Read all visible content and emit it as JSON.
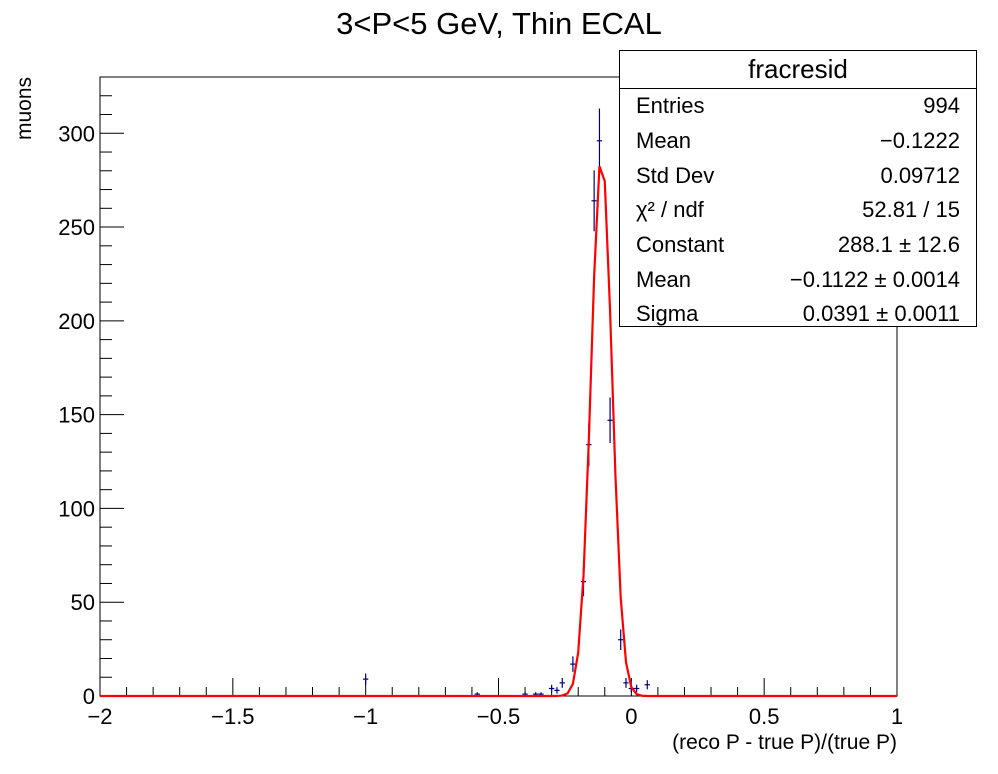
{
  "title": "3<P<5 GeV, Thin ECAL",
  "stats_box": {
    "name": "fracresid",
    "rows": [
      {
        "label": "Entries",
        "value": "994"
      },
      {
        "label": "Mean",
        "value": "−0.1222"
      },
      {
        "label": "Std Dev",
        "value": "0.09712"
      },
      {
        "label": "χ² / ndf",
        "value": "52.81 / 15"
      },
      {
        "label": "Constant",
        "value": "288.1 ± 12.6"
      },
      {
        "label": "Mean",
        "value": "−0.1122 ± 0.0014"
      },
      {
        "label": "Sigma",
        "value": "0.0391 ± 0.0011"
      }
    ]
  },
  "chart_data": {
    "type": "scatter",
    "xlabel": "(reco P - true P)/(true P)",
    "ylabel": "muons",
    "xlim": [
      -2,
      1
    ],
    "ylim": [
      0,
      330
    ],
    "x_ticks": [
      -2,
      -1.5,
      -1,
      -0.5,
      0,
      0.5,
      1
    ],
    "x_tick_labels": [
      "−2",
      "−1.5",
      "−1",
      "−0.5",
      "0",
      "0.5",
      "1"
    ],
    "y_ticks": [
      0,
      50,
      100,
      150,
      200,
      250,
      300
    ],
    "y_tick_labels": [
      "0",
      "50",
      "100",
      "150",
      "200",
      "250",
      "300"
    ],
    "histogram_color": "#00007f",
    "fit_color": "#ff0000",
    "bin_width": 0.02,
    "histogram": [
      {
        "x": -1.0,
        "y": 9
      },
      {
        "x": -0.58,
        "y": 1
      },
      {
        "x": -0.4,
        "y": 1
      },
      {
        "x": -0.36,
        "y": 1
      },
      {
        "x": -0.34,
        "y": 1
      },
      {
        "x": -0.3,
        "y": 4
      },
      {
        "x": -0.28,
        "y": 3
      },
      {
        "x": -0.26,
        "y": 7
      },
      {
        "x": -0.22,
        "y": 17
      },
      {
        "x": -0.18,
        "y": 61
      },
      {
        "x": -0.16,
        "y": 134
      },
      {
        "x": -0.14,
        "y": 264
      },
      {
        "x": -0.12,
        "y": 296
      },
      {
        "x": -0.08,
        "y": 147
      },
      {
        "x": -0.04,
        "y": 30
      },
      {
        "x": -0.02,
        "y": 7
      },
      {
        "x": 0.0,
        "y": 4
      },
      {
        "x": 0.02,
        "y": 4
      },
      {
        "x": 0.06,
        "y": 6
      }
    ],
    "fit": {
      "function": "gaus",
      "constant": 288.1,
      "mean": -0.1122,
      "sigma": 0.0391
    }
  }
}
